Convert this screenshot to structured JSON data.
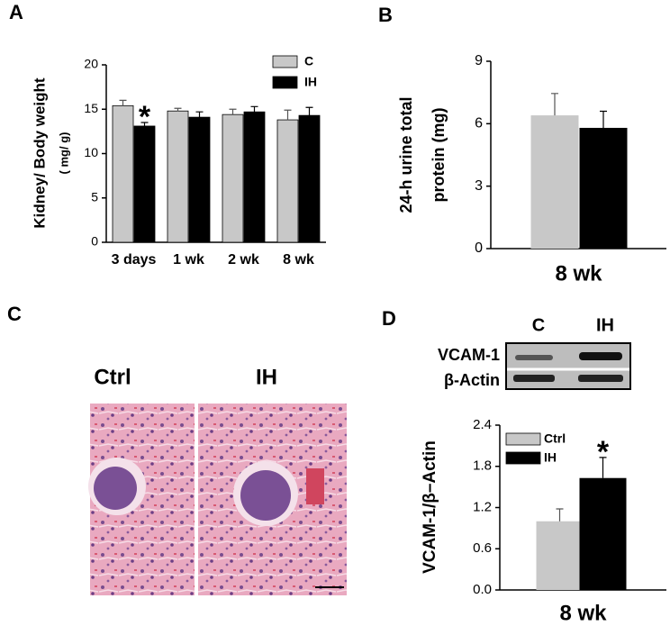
{
  "panel_labels": [
    "A",
    "B",
    "C",
    "D"
  ],
  "histology": {
    "labels": [
      "Ctrl",
      "IH"
    ]
  },
  "blot": {
    "lanes": [
      "C",
      "IH"
    ],
    "rows": [
      "VCAM-1",
      "β-Actin"
    ]
  },
  "chart_data": [
    {
      "type": "bar",
      "y_label": [
        "Kidney/ Body weight",
        "( mg/ g)"
      ],
      "categories": [
        "3 days",
        "1 wk",
        "2 wk",
        "8 wk"
      ],
      "series": [
        {
          "name": "C",
          "color": "#c8c8c8",
          "values": [
            15.4,
            14.8,
            14.4,
            13.8
          ],
          "errors": [
            0.6,
            0.3,
            0.6,
            1.1
          ]
        },
        {
          "name": "IH",
          "color": "#000000",
          "values": [
            13.1,
            14.1,
            14.7,
            14.3
          ],
          "errors": [
            0.4,
            0.6,
            0.6,
            0.9
          ]
        }
      ],
      "ylim": [
        0,
        20
      ],
      "yticks": [
        0,
        5,
        10,
        15,
        20
      ],
      "annotations": [
        {
          "text": "*"
        }
      ]
    },
    {
      "type": "bar",
      "y_label": [
        "24-h urine total",
        "protein (mg)"
      ],
      "categories": [
        "8 wk"
      ],
      "series": [
        {
          "color": "#c8c8c8",
          "values": [
            6.4
          ],
          "errors": [
            1.05
          ]
        },
        {
          "color": "#000000",
          "values": [
            5.8
          ],
          "errors": [
            0.8
          ]
        }
      ],
      "ylim": [
        0,
        9
      ],
      "yticks": [
        0,
        3,
        6,
        9
      ]
    },
    {
      "type": "bar",
      "y_label": [
        "VCAM-1/β–Actin"
      ],
      "categories": [
        "8 wk"
      ],
      "series": [
        {
          "name": "Ctrl",
          "color": "#c8c8c8",
          "values": [
            1.0
          ],
          "errors": [
            0.18
          ]
        },
        {
          "name": "IH",
          "color": "#000000",
          "values": [
            1.63
          ],
          "errors": [
            0.3
          ]
        }
      ],
      "ylim": [
        0,
        2.4
      ],
      "yticks": [
        {
          "value": 0,
          "label": "0.0"
        },
        {
          "value": 0.6,
          "label": "0.6"
        },
        {
          "value": 1.2,
          "label": "1.2"
        },
        {
          "value": 1.8,
          "label": "1.8"
        },
        {
          "value": 2.4,
          "label": "2.4"
        }
      ],
      "annotations": [
        {
          "text": "*"
        }
      ]
    }
  ]
}
